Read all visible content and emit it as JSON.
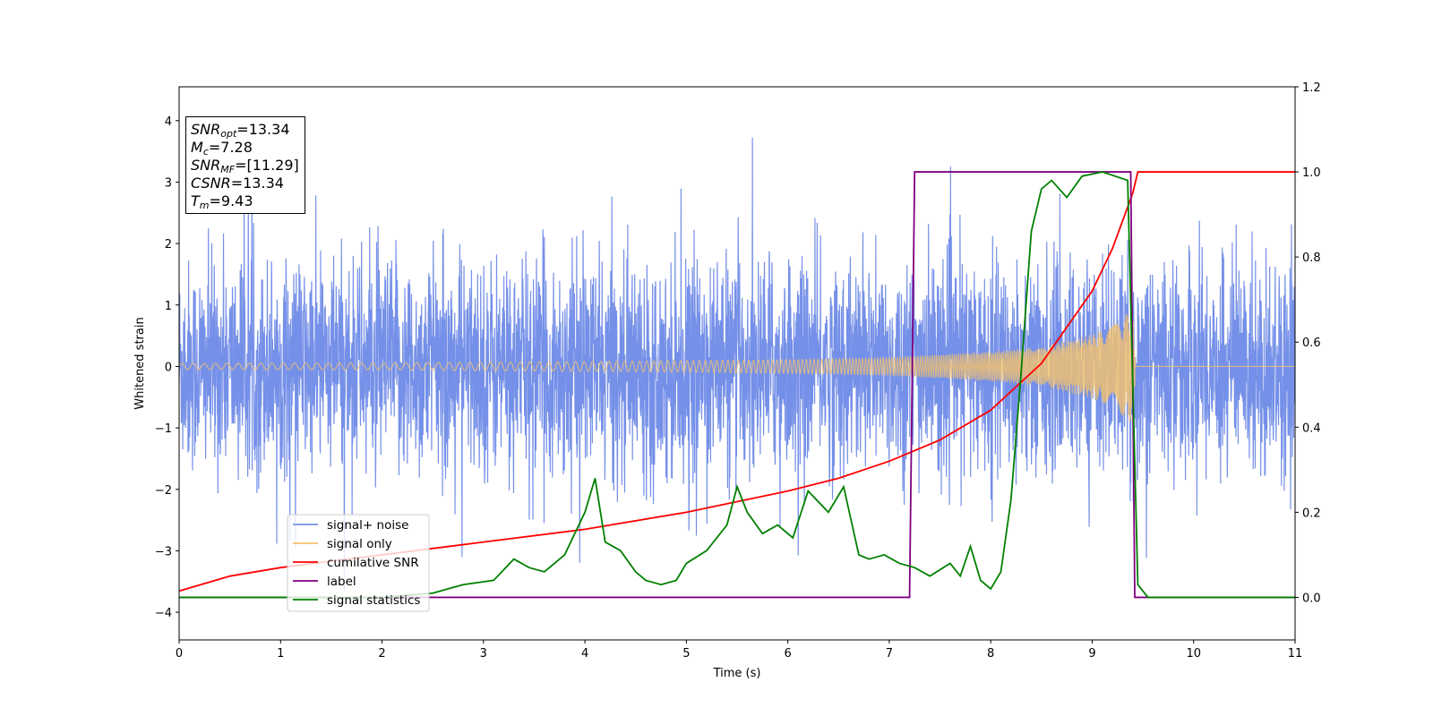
{
  "chart_data": {
    "type": "line",
    "xlabel": "Time (s)",
    "ylabel": "Whitened strain",
    "xlim": [
      0,
      11
    ],
    "ylim": [
      -4.45,
      4.55
    ],
    "y2lim": [
      -0.1,
      1.2
    ],
    "x_ticks": [
      "0",
      "1",
      "2",
      "3",
      "4",
      "5",
      "6",
      "7",
      "8",
      "9",
      "10",
      "11"
    ],
    "y_ticks": [
      "−4",
      "−3",
      "−2",
      "−1",
      "0",
      "1",
      "2",
      "3",
      "4"
    ],
    "y2_ticks": [
      "0.0",
      "0.2",
      "0.4",
      "0.6",
      "0.8",
      "1.0",
      "1.2"
    ],
    "grid": false,
    "legend_position": "lower-left",
    "colors": {
      "noise": "#7590e8",
      "signal": "#f5c26b",
      "cumulative": "#ff0000",
      "label": "#800080",
      "statistics": "#008000"
    },
    "series": [
      {
        "name": "signal+ noise",
        "description": "whitened noisy strain fluctuating roughly between -2.5 and 2.5 with spikes up to 4.2 and down to -4.0",
        "amplitude_range": [
          -4.0,
          4.2
        ]
      },
      {
        "name": "signal only",
        "description": "chirp signal envelope growing until merger",
        "x": [
          0,
          2,
          4,
          6,
          7,
          8,
          8.5,
          9,
          9.2,
          9.4,
          9.43,
          11
        ],
        "y_amplitude": [
          0.05,
          0.06,
          0.08,
          0.11,
          0.15,
          0.24,
          0.32,
          0.52,
          0.66,
          0.95,
          0.0,
          0.0
        ]
      },
      {
        "name": "cumilative SNR",
        "axis": "right",
        "x": [
          0,
          0.5,
          1,
          2,
          3,
          4,
          5,
          6,
          6.5,
          7,
          7.5,
          8,
          8.5,
          9,
          9.2,
          9.4,
          9.45,
          11
        ],
        "y": [
          0.015,
          0.05,
          0.07,
          0.1,
          0.13,
          0.16,
          0.2,
          0.25,
          0.28,
          0.32,
          0.37,
          0.44,
          0.55,
          0.72,
          0.82,
          0.95,
          1.0,
          1.0
        ]
      },
      {
        "name": "label",
        "axis": "right",
        "x": [
          0,
          7.2,
          7.25,
          9.38,
          9.42,
          11
        ],
        "y": [
          0,
          0,
          1,
          1,
          0,
          0
        ]
      },
      {
        "name": "signal statistics",
        "axis": "right",
        "x": [
          0,
          0.5,
          1,
          1.5,
          2,
          2.5,
          2.8,
          3.1,
          3.3,
          3.45,
          3.6,
          3.8,
          3.9,
          4.0,
          4.1,
          4.2,
          4.35,
          4.5,
          4.6,
          4.75,
          4.9,
          5.0,
          5.2,
          5.4,
          5.5,
          5.6,
          5.75,
          5.9,
          6.05,
          6.2,
          6.4,
          6.55,
          6.7,
          6.8,
          6.95,
          7.1,
          7.25,
          7.4,
          7.6,
          7.7,
          7.8,
          7.9,
          8.0,
          8.1,
          8.2,
          8.3,
          8.4,
          8.5,
          8.6,
          8.75,
          8.9,
          9.1,
          9.35,
          9.45,
          9.55,
          11
        ],
        "y": [
          0,
          0,
          0,
          0,
          0,
          0.01,
          0.03,
          0.04,
          0.09,
          0.07,
          0.06,
          0.1,
          0.15,
          0.2,
          0.28,
          0.13,
          0.11,
          0.06,
          0.04,
          0.03,
          0.04,
          0.08,
          0.11,
          0.17,
          0.26,
          0.2,
          0.15,
          0.17,
          0.14,
          0.25,
          0.2,
          0.26,
          0.1,
          0.09,
          0.1,
          0.08,
          0.07,
          0.05,
          0.08,
          0.05,
          0.12,
          0.04,
          0.02,
          0.06,
          0.23,
          0.53,
          0.86,
          0.96,
          0.98,
          0.94,
          0.99,
          1.0,
          0.98,
          0.03,
          0.0,
          0.0
        ]
      }
    ],
    "annotation_lines": [
      {
        "label": "SNR",
        "sub": "opt",
        "value": "=13.34"
      },
      {
        "label": "M",
        "sub": "c",
        "value": "=7.28"
      },
      {
        "label": "SNR",
        "sub": "MF",
        "value": "=[11.29]"
      },
      {
        "label": "CSNR",
        "sub": "",
        "value": "=13.34"
      },
      {
        "label": "T",
        "sub": "m",
        "value": "=9.43"
      }
    ]
  }
}
